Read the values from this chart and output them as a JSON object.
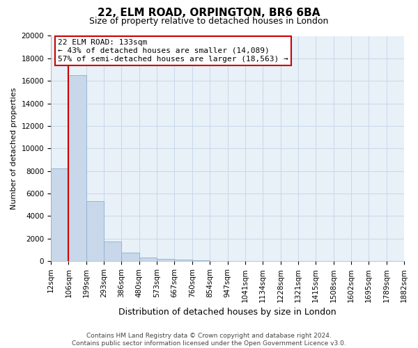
{
  "title": "22, ELM ROAD, ORPINGTON, BR6 6BA",
  "subtitle": "Size of property relative to detached houses in London",
  "xlabel": "Distribution of detached houses by size in London",
  "ylabel": "Number of detached properties",
  "bar_values": [
    8200,
    16500,
    5300,
    1750,
    750,
    300,
    200,
    150,
    100,
    0,
    0,
    0,
    0,
    0,
    0,
    0,
    0,
    0,
    0,
    0
  ],
  "bar_color": "#c8d8ea",
  "bar_edge_color": "#8ab0cc",
  "categories": [
    "12sqm",
    "106sqm",
    "199sqm",
    "293sqm",
    "386sqm",
    "480sqm",
    "573sqm",
    "667sqm",
    "760sqm",
    "854sqm",
    "947sqm",
    "1041sqm",
    "1134sqm",
    "1228sqm",
    "1321sqm",
    "1415sqm",
    "1508sqm",
    "1602sqm",
    "1695sqm",
    "1789sqm",
    "1882sqm"
  ],
  "ylim": [
    0,
    20000
  ],
  "yticks": [
    0,
    2000,
    4000,
    6000,
    8000,
    10000,
    12000,
    14000,
    16000,
    18000,
    20000
  ],
  "property_line_x": 1,
  "property_line_label": "22 ELM ROAD: 133sqm",
  "annotation_smaller": "← 43% of detached houses are smaller (14,089)",
  "annotation_larger": "57% of semi-detached houses are larger (18,563) →",
  "annotation_box_color": "#ffffff",
  "annotation_box_edge_color": "#cc0000",
  "property_line_color": "#cc0000",
  "grid_color": "#c8d8e8",
  "plot_bg_color": "#e8f0f8",
  "fig_bg_color": "#ffffff",
  "footer_line1": "Contains HM Land Registry data © Crown copyright and database right 2024.",
  "footer_line2": "Contains public sector information licensed under the Open Government Licence v3.0.",
  "title_fontsize": 11,
  "subtitle_fontsize": 9,
  "ylabel_fontsize": 8,
  "xlabel_fontsize": 9,
  "tick_fontsize": 7.5,
  "annotation_fontsize": 8,
  "footer_fontsize": 6.5
}
